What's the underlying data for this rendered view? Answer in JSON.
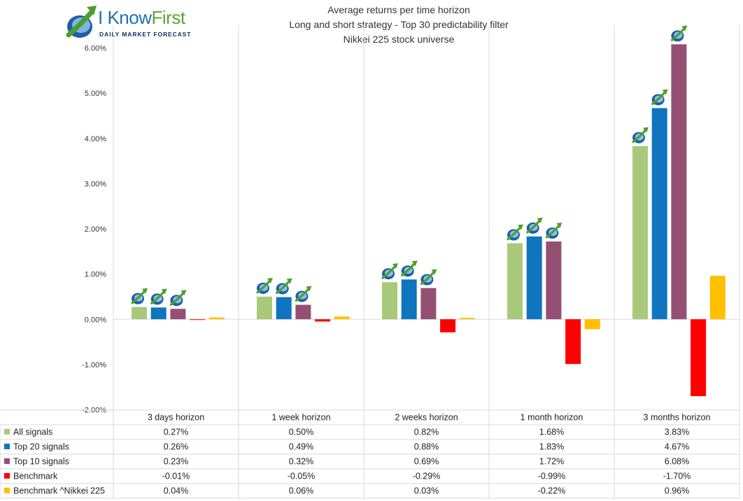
{
  "logo": {
    "brand_i": "I",
    "brand_know": "Know",
    "brand_first": "First",
    "tagline": "Daily Market Forecast"
  },
  "chart_data": {
    "type": "bar",
    "title": [
      "Average returns per time horizon",
      "Long and short strategy - Top 30 predictability filter",
      "Nikkei 225 stock universe"
    ],
    "categories": [
      "3 days horizon",
      "1 week horizon",
      "2 weeks horizon",
      "1 month horizon",
      "3 months horizon"
    ],
    "ylim": [
      -2.0,
      6.0
    ],
    "y_ticks": [
      -2.0,
      -1.0,
      0.0,
      1.0,
      2.0,
      3.0,
      4.0,
      5.0,
      6.0
    ],
    "y_tick_labels": [
      "-2.00%",
      "-1.00%",
      "0.00%",
      "1.00%",
      "2.00%",
      "3.00%",
      "4.00%",
      "5.00%",
      "6.00%"
    ],
    "unit": "%",
    "grid": "vertical",
    "series": [
      {
        "name": "All signals",
        "color": "#a9c97a",
        "icon": "growth-arrow-icon",
        "values": [
          0.27,
          0.5,
          0.82,
          1.68,
          3.83
        ],
        "labels": [
          "0.27%",
          "0.50%",
          "0.82%",
          "1.68%",
          "3.83%"
        ]
      },
      {
        "name": "Top 20 signals",
        "color": "#0f75bf",
        "icon": "growth-arrow-icon",
        "values": [
          0.26,
          0.49,
          0.88,
          1.83,
          4.67
        ],
        "labels": [
          "0.26%",
          "0.49%",
          "0.88%",
          "1.83%",
          "4.67%"
        ]
      },
      {
        "name": "Top 10 signals",
        "color": "#954f72",
        "icon": "growth-arrow-icon",
        "values": [
          0.23,
          0.32,
          0.69,
          1.72,
          6.08
        ],
        "labels": [
          "0.23%",
          "0.32%",
          "0.69%",
          "1.72%",
          "6.08%"
        ]
      },
      {
        "name": "Benchmark",
        "color": "#ff0000",
        "values": [
          -0.01,
          -0.05,
          -0.29,
          -0.99,
          -1.7
        ],
        "labels": [
          "-0.01%",
          "-0.05%",
          "-0.29%",
          "-0.99%",
          "-1.70%"
        ]
      },
      {
        "name": "Benchmark ^Nikkei 225",
        "color": "#ffc000",
        "values": [
          0.04,
          0.06,
          0.03,
          -0.22,
          0.96
        ],
        "labels": [
          "0.04%",
          "0.06%",
          "0.03%",
          "-0.22%",
          "0.96%"
        ]
      }
    ]
  }
}
